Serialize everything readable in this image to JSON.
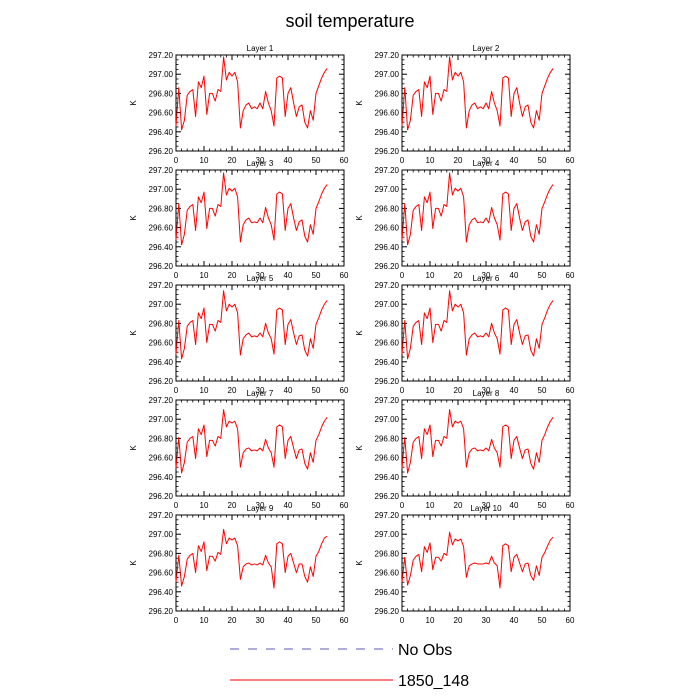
{
  "title": "soil temperature",
  "legend": {
    "entries": [
      {
        "label": "No Obs",
        "color": "#5b5bb0",
        "style": "dashed"
      },
      {
        "label": "1850_148",
        "color": "#ff0000",
        "style": "solid"
      }
    ]
  },
  "chart_data": {
    "type": "line",
    "ylabel": "K",
    "xlim": [
      0,
      60
    ],
    "ylim": [
      296.2,
      297.2
    ],
    "xticks": [
      0,
      10,
      20,
      30,
      40,
      50,
      60
    ],
    "yticks": [
      296.2,
      296.4,
      296.6,
      296.8,
      297.0,
      297.2
    ],
    "ytick_labels": [
      "296.20",
      "296.40",
      "296.60",
      "296.80",
      "297.00",
      "297.20"
    ],
    "xtick_labels": [
      "0",
      "10",
      "20",
      "30",
      "40",
      "50",
      "60"
    ],
    "x": [
      0,
      1,
      2,
      3,
      4,
      5,
      6,
      7,
      8,
      9,
      10,
      11,
      12,
      13,
      14,
      15,
      16,
      17,
      18,
      19,
      20,
      21,
      22,
      23,
      24,
      25,
      26,
      27,
      28,
      29,
      30,
      31,
      32,
      33,
      34,
      35,
      36,
      37,
      38,
      39,
      40,
      41,
      42,
      43,
      44,
      45,
      46,
      47,
      48,
      49,
      50,
      51,
      52,
      53,
      54
    ],
    "panels": [
      {
        "title": "Layer 1",
        "series": [
          {
            "name": "1850_148",
            "values": [
              296.46,
              296.86,
              296.42,
              296.52,
              296.78,
              296.82,
              296.84,
              296.56,
              296.92,
              296.86,
              296.98,
              296.58,
              296.8,
              296.8,
              296.72,
              296.84,
              296.82,
              297.18,
              296.94,
              297.02,
              296.98,
              297.02,
              296.92,
              296.44,
              296.62,
              296.68,
              296.7,
              296.64,
              296.66,
              296.64,
              296.7,
              296.64,
              296.82,
              296.7,
              296.62,
              296.46,
              296.96,
              296.98,
              296.96,
              296.56,
              296.8,
              296.86,
              296.7,
              296.56,
              296.66,
              296.68,
              296.5,
              296.44,
              296.62,
              296.52,
              296.8,
              296.88,
              296.96,
              297.02,
              297.06
            ]
          }
        ]
      },
      {
        "title": "Layer 2",
        "series": [
          {
            "name": "1850_148",
            "values": [
              296.46,
              296.86,
              296.42,
              296.52,
              296.78,
              296.82,
              296.84,
              296.56,
              296.92,
              296.86,
              296.98,
              296.58,
              296.8,
              296.8,
              296.72,
              296.84,
              296.82,
              297.18,
              296.94,
              297.02,
              296.98,
              297.02,
              296.92,
              296.44,
              296.62,
              296.68,
              296.7,
              296.64,
              296.66,
              296.64,
              296.7,
              296.64,
              296.82,
              296.7,
              296.62,
              296.46,
              296.96,
              296.98,
              296.96,
              296.56,
              296.8,
              296.86,
              296.7,
              296.56,
              296.66,
              296.68,
              296.5,
              296.44,
              296.62,
              296.52,
              296.8,
              296.88,
              296.96,
              297.02,
              297.06
            ]
          }
        ]
      },
      {
        "title": "Layer 3",
        "series": [
          {
            "name": "1850_148",
            "values": [
              296.47,
              296.85,
              296.42,
              296.53,
              296.78,
              296.82,
              296.84,
              296.57,
              296.92,
              296.86,
              296.97,
              296.59,
              296.8,
              296.8,
              296.72,
              296.84,
              296.82,
              297.17,
              296.94,
              297.01,
              296.98,
              297.01,
              296.92,
              296.45,
              296.63,
              296.68,
              296.7,
              296.65,
              296.66,
              296.65,
              296.7,
              296.65,
              296.81,
              296.7,
              296.63,
              296.47,
              296.95,
              296.97,
              296.95,
              296.57,
              296.8,
              296.85,
              296.7,
              296.57,
              296.66,
              296.68,
              296.51,
              296.45,
              296.63,
              296.53,
              296.8,
              296.87,
              296.95,
              297.01,
              297.05
            ]
          }
        ]
      },
      {
        "title": "Layer 4",
        "series": [
          {
            "name": "1850_148",
            "values": [
              296.47,
              296.85,
              296.42,
              296.53,
              296.78,
              296.82,
              296.84,
              296.57,
              296.92,
              296.86,
              296.97,
              296.59,
              296.8,
              296.8,
              296.72,
              296.84,
              296.82,
              297.17,
              296.94,
              297.01,
              296.98,
              297.01,
              296.92,
              296.45,
              296.63,
              296.68,
              296.7,
              296.65,
              296.66,
              296.65,
              296.7,
              296.65,
              296.81,
              296.7,
              296.63,
              296.47,
              296.95,
              296.97,
              296.95,
              296.57,
              296.8,
              296.85,
              296.7,
              296.57,
              296.66,
              296.68,
              296.51,
              296.45,
              296.63,
              296.53,
              296.8,
              296.87,
              296.95,
              297.01,
              297.05
            ]
          }
        ]
      },
      {
        "title": "Layer 5",
        "series": [
          {
            "name": "1850_148",
            "values": [
              296.48,
              296.83,
              296.43,
              296.54,
              296.77,
              296.81,
              296.83,
              296.58,
              296.91,
              296.85,
              296.96,
              296.6,
              296.79,
              296.79,
              296.72,
              296.83,
              296.81,
              297.14,
              296.93,
              297.0,
              296.97,
              297.0,
              296.91,
              296.47,
              296.64,
              296.68,
              296.7,
              296.66,
              296.67,
              296.66,
              296.7,
              296.66,
              296.8,
              296.7,
              296.64,
              296.48,
              296.94,
              296.96,
              296.94,
              296.58,
              296.79,
              296.84,
              296.7,
              296.58,
              296.67,
              296.68,
              296.52,
              296.46,
              296.64,
              296.54,
              296.79,
              296.86,
              296.94,
              297.0,
              297.04
            ]
          }
        ]
      },
      {
        "title": "Layer 6",
        "series": [
          {
            "name": "1850_148",
            "values": [
              296.48,
              296.83,
              296.43,
              296.54,
              296.77,
              296.81,
              296.83,
              296.58,
              296.91,
              296.85,
              296.96,
              296.6,
              296.79,
              296.79,
              296.72,
              296.83,
              296.81,
              297.14,
              296.93,
              297.0,
              296.97,
              297.0,
              296.91,
              296.47,
              296.64,
              296.68,
              296.7,
              296.66,
              296.67,
              296.66,
              296.7,
              296.66,
              296.8,
              296.7,
              296.64,
              296.48,
              296.94,
              296.96,
              296.94,
              296.58,
              296.79,
              296.84,
              296.7,
              296.58,
              296.67,
              296.68,
              296.52,
              296.46,
              296.64,
              296.54,
              296.79,
              296.86,
              296.94,
              297.0,
              297.04
            ]
          }
        ]
      },
      {
        "title": "Layer 7",
        "series": [
          {
            "name": "1850_148",
            "values": [
              296.49,
              296.81,
              296.44,
              296.55,
              296.76,
              296.8,
              296.82,
              296.59,
              296.9,
              296.84,
              296.94,
              296.61,
              296.78,
              296.78,
              296.72,
              296.82,
              296.8,
              297.1,
              296.92,
              296.98,
              296.96,
              296.98,
              296.9,
              296.5,
              296.65,
              296.69,
              296.7,
              296.67,
              296.68,
              296.67,
              296.7,
              296.67,
              296.79,
              296.7,
              296.65,
              296.5,
              296.92,
              296.94,
              296.92,
              296.59,
              296.78,
              296.82,
              296.7,
              296.59,
              296.68,
              296.69,
              296.54,
              296.48,
              296.65,
              296.55,
              296.78,
              296.84,
              296.92,
              296.98,
              297.02
            ]
          }
        ]
      },
      {
        "title": "Layer 8",
        "series": [
          {
            "name": "1850_148",
            "values": [
              296.49,
              296.81,
              296.44,
              296.55,
              296.76,
              296.8,
              296.82,
              296.59,
              296.9,
              296.84,
              296.94,
              296.61,
              296.78,
              296.78,
              296.72,
              296.82,
              296.8,
              297.1,
              296.92,
              296.98,
              296.96,
              296.98,
              296.9,
              296.5,
              296.65,
              296.69,
              296.7,
              296.67,
              296.68,
              296.67,
              296.7,
              296.67,
              296.79,
              296.7,
              296.65,
              296.5,
              296.92,
              296.94,
              296.92,
              296.59,
              296.78,
              296.82,
              296.7,
              296.59,
              296.68,
              296.69,
              296.54,
              296.48,
              296.65,
              296.55,
              296.78,
              296.84,
              296.92,
              296.98,
              297.02
            ]
          }
        ]
      },
      {
        "title": "Layer 9",
        "series": [
          {
            "name": "1850_148",
            "values": [
              296.5,
              296.78,
              296.46,
              296.56,
              296.74,
              296.78,
              296.8,
              296.6,
              296.88,
              296.82,
              296.92,
              296.62,
              296.77,
              296.77,
              296.72,
              296.81,
              296.79,
              297.05,
              296.9,
              296.96,
              296.94,
              296.96,
              296.88,
              296.53,
              296.66,
              296.69,
              296.7,
              296.68,
              296.69,
              296.68,
              296.7,
              296.68,
              296.78,
              296.7,
              296.66,
              296.44,
              296.9,
              296.92,
              296.9,
              296.6,
              296.77,
              296.8,
              296.7,
              296.6,
              296.69,
              296.69,
              296.56,
              296.5,
              296.66,
              296.56,
              296.77,
              296.82,
              296.9,
              296.96,
              296.98
            ]
          }
        ]
      },
      {
        "title": "Layer 10",
        "series": [
          {
            "name": "1850_148",
            "values": [
              296.5,
              296.76,
              296.47,
              296.57,
              296.73,
              296.77,
              296.79,
              296.61,
              296.87,
              296.81,
              296.91,
              296.63,
              296.76,
              296.76,
              296.72,
              296.8,
              296.78,
              297.02,
              296.89,
              296.95,
              296.93,
              296.95,
              296.87,
              296.55,
              296.67,
              296.69,
              296.7,
              296.69,
              296.69,
              296.69,
              296.7,
              296.69,
              296.77,
              296.7,
              296.67,
              296.44,
              296.88,
              296.9,
              296.88,
              296.61,
              296.76,
              296.79,
              296.7,
              296.61,
              296.69,
              296.7,
              296.57,
              296.52,
              296.67,
              296.57,
              296.76,
              296.81,
              296.88,
              296.94,
              296.97
            ]
          }
        ]
      }
    ]
  }
}
